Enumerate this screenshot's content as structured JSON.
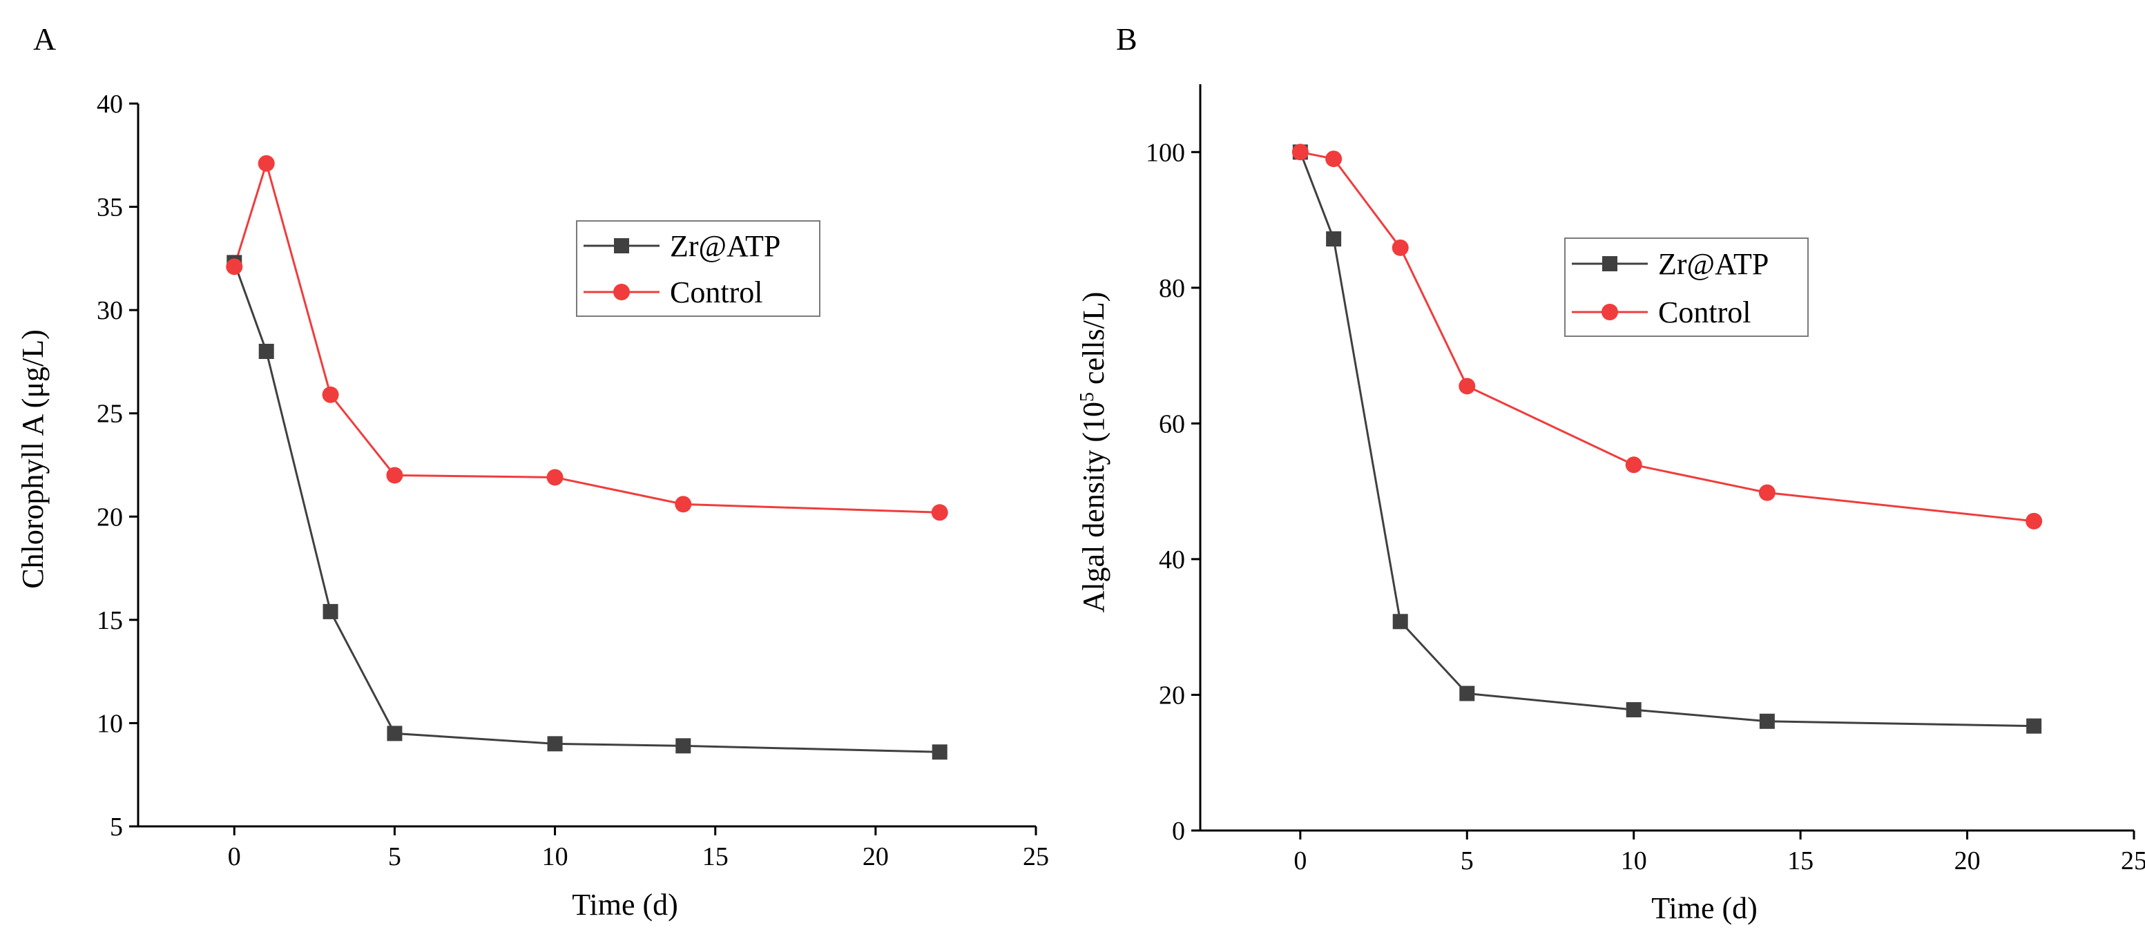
{
  "chart_data": [
    {
      "panel": "A",
      "type": "line",
      "xlabel": "Time (d)",
      "ylabel": "Chlorophyll A (μg/L)",
      "xlim": [
        -3,
        25
      ],
      "ylim": [
        5,
        40
      ],
      "xticks": [
        "0",
        "5",
        "10",
        "15",
        "20",
        "25"
      ],
      "yticks": [
        "5",
        "10",
        "15",
        "20",
        "25",
        "30",
        "35",
        "40"
      ],
      "x": [
        0,
        1,
        3,
        5,
        10,
        14,
        22
      ],
      "legend_position": "upper-right",
      "series": [
        {
          "name": "Zr@ATP",
          "marker": "square",
          "color": "#404040",
          "values": [
            32.3,
            28.0,
            15.4,
            9.5,
            9.0,
            8.9,
            8.6
          ]
        },
        {
          "name": "Control",
          "marker": "circle",
          "color": "#f03c3c",
          "values": [
            32.1,
            37.1,
            25.9,
            22.0,
            21.9,
            20.6,
            20.2
          ]
        }
      ]
    },
    {
      "panel": "B",
      "type": "line",
      "xlabel": "Time (d)",
      "ylabel_main": "Algal density (10",
      "ylabel_sup": "5",
      "ylabel_tail": " cells/L)",
      "xlim": [
        -3,
        25
      ],
      "ylim": [
        0,
        110
      ],
      "xticks": [
        "0",
        "5",
        "10",
        "15",
        "20",
        "25"
      ],
      "yticks": [
        "0",
        "20",
        "40",
        "60",
        "80",
        "100"
      ],
      "x": [
        0,
        1,
        3,
        5,
        10,
        14,
        22
      ],
      "legend_position": "upper-right",
      "series": [
        {
          "name": "Zr@ATP",
          "marker": "square",
          "color": "#404040",
          "values": [
            100,
            87.2,
            30.8,
            20.2,
            17.8,
            16.1,
            15.4
          ]
        },
        {
          "name": "Control",
          "marker": "circle",
          "color": "#f03c3c",
          "values": [
            100,
            99.0,
            85.9,
            65.5,
            53.9,
            49.8,
            45.6
          ]
        }
      ]
    }
  ]
}
